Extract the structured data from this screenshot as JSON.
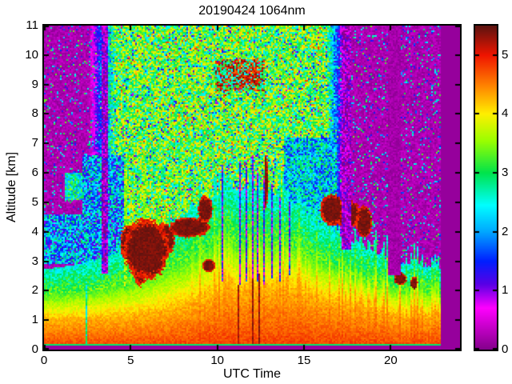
{
  "figure": {
    "title": "20190424 1064nm",
    "xlabel": "UTC Time",
    "ylabel": "Altitude [km]"
  },
  "chart_data": {
    "type": "heatmap",
    "title": "20190424 1064nm",
    "xlabel": "UTC Time",
    "ylabel": "Altitude [km]",
    "xlim": [
      0,
      24
    ],
    "ylim": [
      0,
      11
    ],
    "xticks": [
      0,
      5,
      10,
      15,
      20
    ],
    "yticks": [
      0,
      1,
      2,
      3,
      4,
      5,
      6,
      7,
      8,
      9,
      10,
      11
    ],
    "grid": false,
    "legend": "none",
    "colorbar": {
      "position": "right",
      "min": 0,
      "max": 5.5,
      "ticks": [
        0,
        1,
        2,
        3,
        4,
        5
      ],
      "colormap_stops": [
        [
          0.0,
          "#85008C"
        ],
        [
          0.7,
          "#FF00FF"
        ],
        [
          1.1,
          "#5A00E6"
        ],
        [
          1.5,
          "#0020FF"
        ],
        [
          2.0,
          "#00A8FF"
        ],
        [
          2.45,
          "#00FFFF"
        ],
        [
          3.0,
          "#00E44C"
        ],
        [
          3.55,
          "#9CFF00"
        ],
        [
          4.0,
          "#FFF000"
        ],
        [
          4.5,
          "#FF8000"
        ],
        [
          5.0,
          "#F01500"
        ],
        [
          5.5,
          "#5C1310"
        ]
      ]
    },
    "no_data": {
      "utc_start": 22.85,
      "value": 0.1
    },
    "surface": {
      "purple_top": 0.13,
      "green_top": 0.2,
      "purple_value": 0.12,
      "green_value": 2.9
    },
    "boundary_layer": {
      "red_base": 0.95,
      "red_amp": 0.95,
      "red_center": 12.8,
      "red_width": 5.2,
      "spike": 0.45,
      "yellow_base": 0.9,
      "yellow_amp": 0.9,
      "green_base": 0.8,
      "green_amp": 1.0
    },
    "noise": {
      "dawn": [
        2.6,
        4.2
      ],
      "dusk": [
        16.3,
        17.4
      ]
    },
    "blue_patches": [
      {
        "t": [
          0.0,
          2.2
        ],
        "z": [
          2.9,
          4.6
        ],
        "v0": 0.9,
        "v1": 2.2
      },
      {
        "t": [
          2.2,
          4.6
        ],
        "z": [
          2.9,
          6.6
        ],
        "v0": 0.9,
        "v1": 2.2
      },
      {
        "t": [
          1.2,
          3.3
        ],
        "z": [
          5.1,
          6.0
        ],
        "v0": 1.8,
        "v1": 1.7
      },
      {
        "t": [
          13.8,
          16.9
        ],
        "z": [
          3.2,
          7.2
        ],
        "v0": 1.3,
        "v1": 1.9
      }
    ],
    "clouds": [
      {
        "t": 5.9,
        "rt": 1.1,
        "z": 3.4,
        "rz": 0.85
      },
      {
        "t": 5.0,
        "rt": 0.5,
        "z": 3.6,
        "rz": 0.55
      },
      {
        "t": 5.55,
        "rt": 0.3,
        "z": 2.7,
        "rz": 0.45
      },
      {
        "t": 6.9,
        "rt": 0.55,
        "z": 3.75,
        "rz": 0.45
      },
      {
        "t": 8.4,
        "rt": 1.0,
        "z": 4.15,
        "rz": 0.28
      },
      {
        "t": 9.3,
        "rt": 0.35,
        "z": 4.75,
        "rz": 0.4
      },
      {
        "t": 9.5,
        "rt": 0.3,
        "z": 2.85,
        "rz": 0.18
      },
      {
        "t": 12.8,
        "rt": 0.09,
        "z": 5.7,
        "rz": 0.8
      },
      {
        "t": 16.6,
        "rt": 0.55,
        "z": 4.75,
        "rz": 0.45
      },
      {
        "t": 17.5,
        "rt": 0.6,
        "z": 4.6,
        "rz": 0.4
      },
      {
        "t": 18.45,
        "rt": 0.4,
        "z": 4.35,
        "rz": 0.45
      },
      {
        "t": 20.55,
        "rt": 0.3,
        "z": 2.4,
        "rz": 0.18
      },
      {
        "t": 21.35,
        "rt": 0.18,
        "z": 2.25,
        "rz": 0.18
      },
      {
        "t": 3.47,
        "rt": 0.14,
        "z": 3.45,
        "rz": 0.22
      }
    ],
    "plumes": [
      {
        "t": [
          4.62,
          4.82
        ],
        "z": [
          2.1,
          6.1
        ]
      },
      {
        "t": [
          5.72,
          5.92
        ],
        "z": [
          4.2,
          6.3
        ]
      },
      {
        "t": [
          6.52,
          6.68
        ],
        "z": [
          4.0,
          5.9
        ]
      }
    ],
    "cirrus": [
      {
        "t": [
          9.9,
          12.7
        ],
        "z": [
          8.8,
          9.85
        ],
        "gate": 0.55
      },
      {
        "t": [
          10.9,
          12.35
        ],
        "z": [
          9.0,
          9.6
        ],
        "gate": 0.3
      },
      {
        "t": [
          9.85,
          10.75
        ],
        "z": [
          8.55,
          9.35
        ],
        "gate": 0.78
      }
    ],
    "stripes": [
      {
        "t": [
          2.38,
          2.52
        ],
        "z": [
          0.2,
          2.3
        ],
        "v": 2.7,
        "spread": 0.5
      },
      {
        "t": [
          3.32,
          3.7
        ],
        "z": [
          2.6,
          11
        ],
        "v": 0.55,
        "spread": 0.9
      },
      {
        "t": [
          17.15,
          17.7
        ],
        "z": [
          3.4,
          11
        ],
        "v": 0.5,
        "spread": 0.8
      },
      {
        "t": [
          19.85,
          20.55
        ],
        "z": [
          2.5,
          11
        ],
        "v": 0.18,
        "spread": 0.15
      },
      {
        "t": [
          10.28,
          10.36
        ],
        "z": [
          2.3,
          6.3
        ],
        "v": 1.2,
        "spread": 0.7
      },
      {
        "t": [
          10.85,
          10.92
        ],
        "z": [
          2.4,
          6.0
        ],
        "v": 1.2,
        "spread": 0.7
      },
      {
        "t": [
          11.25,
          11.32
        ],
        "z": [
          2.2,
          6.4
        ],
        "v": 1.1,
        "spread": 0.7
      },
      {
        "t": [
          11.62,
          11.7
        ],
        "z": [
          2.3,
          6.2
        ],
        "v": 1.2,
        "spread": 0.7
      },
      {
        "t": [
          12.0,
          12.07
        ],
        "z": [
          2.4,
          6.6
        ],
        "v": 1.1,
        "spread": 0.7
      },
      {
        "t": [
          12.32,
          12.4
        ],
        "z": [
          2.3,
          6.0
        ],
        "v": 1.2,
        "spread": 0.7
      },
      {
        "t": [
          12.68,
          12.76
        ],
        "z": [
          2.2,
          5.8
        ],
        "v": 1.2,
        "spread": 0.7
      },
      {
        "t": [
          13.1,
          13.17
        ],
        "z": [
          2.4,
          5.6
        ],
        "v": 1.3,
        "spread": 0.7
      },
      {
        "t": [
          13.55,
          13.62
        ],
        "z": [
          2.3,
          5.2
        ],
        "v": 1.3,
        "spread": 0.7
      },
      {
        "t": [
          14.15,
          14.22
        ],
        "z": [
          2.5,
          5.0
        ],
        "v": 1.4,
        "spread": 0.7
      },
      {
        "t": [
          12.02,
          12.1
        ],
        "z": [
          0.2,
          3.0
        ],
        "v": 5.3,
        "spread": 0.15
      },
      {
        "t": [
          12.38,
          12.46
        ],
        "z": [
          0.2,
          2.6
        ],
        "v": 5.3,
        "spread": 0.15
      },
      {
        "t": [
          11.2,
          11.26
        ],
        "z": [
          0.2,
          2.2
        ],
        "v": 5.25,
        "spread": 0.15
      }
    ]
  }
}
